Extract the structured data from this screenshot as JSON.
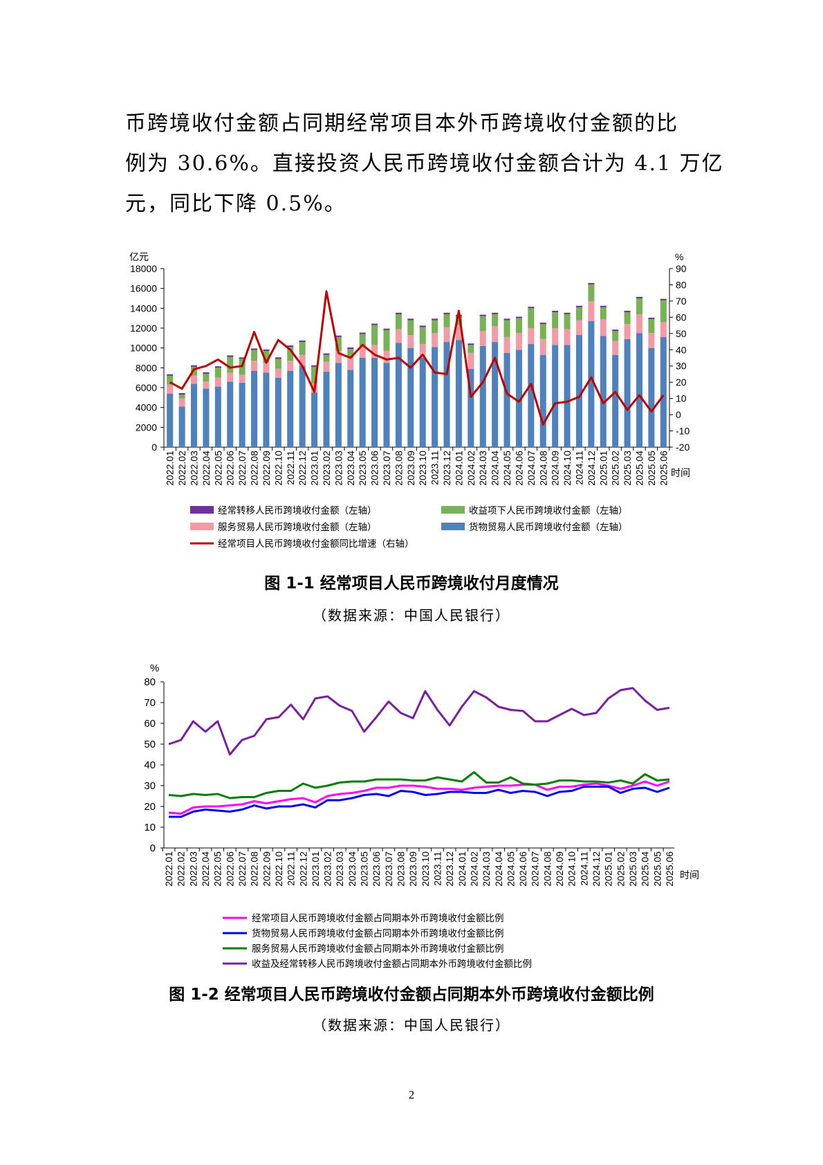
{
  "paragraph": {
    "lines": [
      "币跨境收付金额占同期经常项目本外币跨境收付金额的比",
      "例为 30.6%。直接投资人民币跨境收付金额合计为 4.1 万亿",
      "元，同比下降 0.5%。"
    ]
  },
  "figure1": {
    "caption": "图 1-1   经常项目人民币跨境收付月度情况",
    "source": "（数据来源：中国人民银行）"
  },
  "figure2": {
    "caption": "图 1-2   经常项目人民币跨境收付金额占同期本外币跨境收付金额比例",
    "source": "（数据来源：中国人民银行）"
  },
  "page_number": "2",
  "chart_data": [
    {
      "type": "bar",
      "stacked": true,
      "left_axis_label": "亿元",
      "right_axis_label": "%",
      "xlabel": "时间",
      "ylim": [
        0,
        18000
      ],
      "y2lim": [
        -20,
        90
      ],
      "left_ticks": [
        0,
        2000,
        4000,
        6000,
        8000,
        10000,
        12000,
        14000,
        16000,
        18000
      ],
      "right_ticks": [
        -20,
        -10,
        0,
        10,
        20,
        30,
        40,
        50,
        60,
        70,
        80,
        90
      ],
      "grid": false,
      "legend_position": "bottom",
      "categories": [
        "2022.01",
        "2022.02",
        "2022.03",
        "2022.04",
        "2022.05",
        "2022.06",
        "2022.07",
        "2022.08",
        "2022.09",
        "2022.10",
        "2022.11",
        "2022.12",
        "2023.01",
        "2023.02",
        "2023.03",
        "2023.04",
        "2023.05",
        "2023.06",
        "2023.07",
        "2023.08",
        "2023.09",
        "2023.10",
        "2023.11",
        "2023.12",
        "2024.01",
        "2024.02",
        "2024.03",
        "2024.04",
        "2024.05",
        "2024.06",
        "2024.07",
        "2024.08",
        "2024.09",
        "2024.10",
        "2024.11",
        "2024.12",
        "2025.01",
        "2025.02",
        "2025.03",
        "2025.04",
        "2025.05",
        "2025.06"
      ],
      "series": [
        {
          "name": "货物贸易人民币跨境收付金额（左轴）",
          "color": "#4f81bd",
          "axis": "left",
          "values": [
            5400,
            4100,
            6400,
            5900,
            6100,
            6600,
            6500,
            7700,
            7500,
            7000,
            7700,
            8200,
            5500,
            7600,
            8500,
            7800,
            9000,
            9000,
            8500,
            10500,
            10000,
            9000,
            10100,
            10600,
            10800,
            7900,
            10200,
            10600,
            9500,
            9800,
            10400,
            9300,
            10300,
            10300,
            11300,
            12700,
            11200,
            9300,
            10900,
            11500,
            10000,
            11100
          ]
        },
        {
          "name": "服务贸易人民币跨境收付金额（左轴）",
          "color": "#f29aa6",
          "axis": "left",
          "values": [
            900,
            800,
            800,
            700,
            900,
            900,
            800,
            1000,
            1000,
            900,
            1000,
            1100,
            900,
            1000,
            1200,
            1200,
            1200,
            1300,
            1200,
            1400,
            1300,
            1400,
            1400,
            1500,
            1500,
            1600,
            1500,
            1600,
            1600,
            1700,
            1600,
            1600,
            1700,
            1600,
            1500,
            2000,
            1700,
            1400,
            1500,
            1900,
            1500,
            1500
          ]
        },
        {
          "name": "收益项下人民币跨境收付金额（左轴）",
          "color": "#77b255",
          "axis": "left",
          "values": [
            900,
            400,
            900,
            800,
            1000,
            1600,
            1600,
            1100,
            1200,
            1000,
            1400,
            1300,
            1700,
            700,
            1400,
            900,
            1200,
            2000,
            2100,
            1500,
            1500,
            1700,
            1300,
            1300,
            900,
            800,
            1500,
            1200,
            1700,
            1500,
            2000,
            1500,
            1600,
            1500,
            1300,
            1700,
            1200,
            1000,
            1200,
            1600,
            1400,
            2200
          ]
        },
        {
          "name": "经常转移人民币跨境收付金额（左轴）",
          "color": "#7030a0",
          "axis": "left",
          "values": [
            150,
            150,
            150,
            150,
            150,
            150,
            150,
            150,
            150,
            150,
            150,
            150,
            150,
            150,
            150,
            150,
            150,
            150,
            150,
            150,
            150,
            150,
            150,
            150,
            150,
            150,
            150,
            150,
            150,
            150,
            150,
            150,
            150,
            150,
            150,
            150,
            150,
            150,
            150,
            150,
            150,
            150
          ]
        },
        {
          "name": "经常项目人民币跨境收付金额同比增速（右轴）",
          "color": "#c00000",
          "axis": "right",
          "line": true,
          "values": [
            20,
            16,
            28,
            30,
            34,
            29,
            30,
            51,
            32,
            46,
            40,
            30,
            14,
            76,
            38,
            35,
            43,
            37,
            34,
            35,
            29,
            37,
            26,
            25,
            64,
            11,
            20,
            35,
            13,
            8,
            19,
            -6,
            7,
            8,
            11,
            23,
            7,
            14,
            3,
            12,
            2,
            12
          ]
        }
      ]
    },
    {
      "type": "line",
      "ylabel": "%",
      "xlabel": "时间",
      "ylim": [
        0,
        80
      ],
      "y_ticks": [
        0,
        10,
        20,
        30,
        40,
        50,
        60,
        70,
        80
      ],
      "grid": false,
      "legend_position": "bottom",
      "categories": [
        "2022.01",
        "2022.02",
        "2022.03",
        "2022.04",
        "2022.05",
        "2022.06",
        "2022.07",
        "2022.08",
        "2022.09",
        "2022.10",
        "2022.11",
        "2022.12",
        "2023.01",
        "2023.02",
        "2023.03",
        "2023.04",
        "2023.05",
        "2023.06",
        "2023.07",
        "2023.08",
        "2023.09",
        "2023.10",
        "2023.11",
        "2023.12",
        "2024.01",
        "2024.02",
        "2024.03",
        "2024.04",
        "2024.05",
        "2024.06",
        "2024.07",
        "2024.08",
        "2024.09",
        "2024.10",
        "2024.11",
        "2024.12",
        "2025.01",
        "2025.02",
        "2025.03",
        "2025.04",
        "2025.05",
        "2025.06"
      ],
      "series": [
        {
          "name": "经常项目人民币跨境收付金额占同期本外币跨境收付金额比例",
          "color": "#ff00ff",
          "values": [
            17,
            16.5,
            19.5,
            20,
            20,
            20.5,
            21,
            22.5,
            21.5,
            22.5,
            23.5,
            24,
            22,
            25,
            26,
            26.5,
            27.5,
            29,
            29,
            30,
            30,
            29.5,
            28.5,
            28.5,
            28,
            29,
            29.5,
            30,
            30,
            30.5,
            30.5,
            28,
            29.5,
            29.5,
            30.5,
            31,
            30,
            28.5,
            30,
            32,
            30,
            32
          ]
        },
        {
          "name": "货物贸易人民币跨境收付金额占同期本外币跨境收付金额比例",
          "color": "#0000ff",
          "values": [
            15,
            15,
            17.5,
            18.5,
            18,
            17.5,
            18.5,
            20.5,
            19,
            20,
            20,
            21,
            19.5,
            23,
            23,
            24,
            25.5,
            26,
            25,
            27.5,
            27,
            25.5,
            26,
            27,
            27,
            26.5,
            26.5,
            28,
            26.5,
            27.5,
            27,
            25,
            27,
            27.5,
            29.5,
            29.5,
            29.5,
            26.5,
            28.5,
            29,
            27,
            29
          ]
        },
        {
          "name": "服务贸易人民币跨境收付金额占同期本外币跨境收付金额比例",
          "color": "#008000",
          "values": [
            25.5,
            25,
            26,
            25.5,
            26,
            24,
            24.5,
            24.5,
            26.5,
            27.5,
            27.5,
            31,
            29,
            30,
            31.5,
            32,
            32,
            33,
            33,
            33,
            32.5,
            32.5,
            34,
            33,
            32,
            36.5,
            31.5,
            31.5,
            34,
            31,
            30.5,
            31,
            32.5,
            32.5,
            32,
            32,
            31.5,
            32.5,
            31,
            35.5,
            32.5,
            33
          ]
        },
        {
          "name": "收益及经常转移人民币跨境收付金额占同期本外币跨境收付金额比例",
          "color": "#7b1fa2",
          "values": [
            50,
            52,
            61,
            56,
            61,
            45,
            52,
            54,
            62,
            63,
            69,
            62,
            72,
            73,
            68.5,
            66,
            56,
            63,
            70.5,
            65,
            62.5,
            75.5,
            66.5,
            59,
            68,
            75.5,
            72.5,
            68,
            66.5,
            66,
            61,
            61,
            64,
            67,
            64,
            65,
            72,
            76,
            77,
            71,
            66.5,
            67.5
          ]
        }
      ]
    }
  ]
}
